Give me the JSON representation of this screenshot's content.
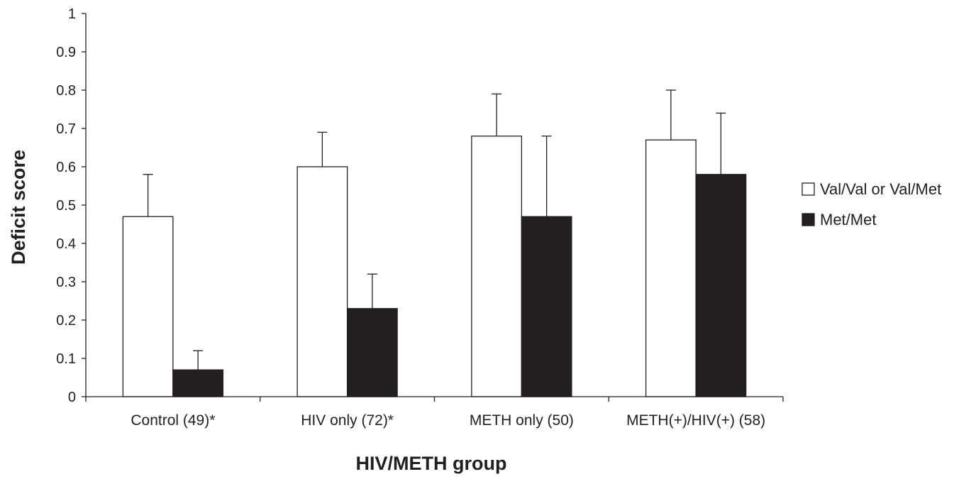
{
  "chart_data": {
    "type": "bar",
    "title": "",
    "xlabel": "HIV/METH group",
    "ylabel": "Deficit score",
    "ylim": [
      0,
      1
    ],
    "yticks": [
      "0",
      "0.1",
      "0.2",
      "0.3",
      "0.4",
      "0.5",
      "0.6",
      "0.7",
      "0.8",
      "0.9",
      "1"
    ],
    "categories": [
      "Control (49)*",
      "HIV only (72)*",
      "METH only (50)",
      "METH(+)/HIV(+) (58)"
    ],
    "series": [
      {
        "name": "Val/Val or Val/Met",
        "fill": "#ffffff",
        "values": [
          0.47,
          0.6,
          0.68,
          0.67
        ],
        "error_upper": [
          0.11,
          0.09,
          0.11,
          0.13
        ]
      },
      {
        "name": "Met/Met",
        "fill": "#231f20",
        "values": [
          0.07,
          0.23,
          0.47,
          0.58
        ],
        "error_upper": [
          0.05,
          0.09,
          0.21,
          0.16
        ]
      }
    ],
    "grid": false,
    "legend_position": "right"
  },
  "colors": {
    "axis": "#231f20",
    "bar_outline": "#231f20"
  }
}
